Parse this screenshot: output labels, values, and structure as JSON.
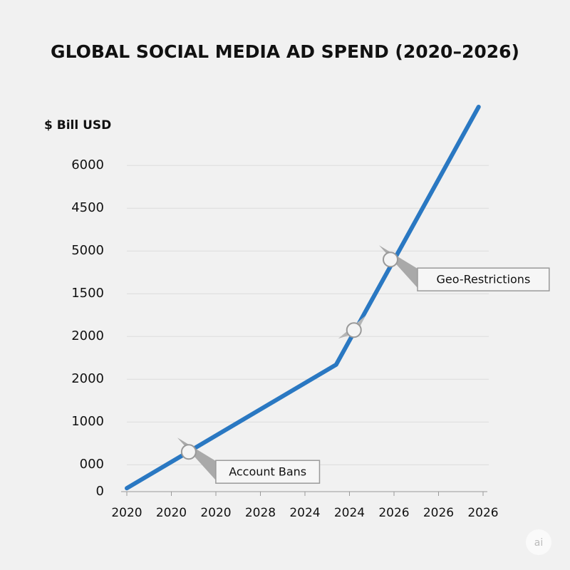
{
  "chart_data": {
    "type": "line",
    "title": "GLOBAL SOCIAL MEDIA AD SPEND (2020–2026)",
    "y_label": "$ Bill USD",
    "x": [
      0,
      4.7,
      7.9
    ],
    "values": [
      0.08,
      2.97,
      9
    ],
    "color": "#2a78c2",
    "xlim": [
      0,
      8
    ],
    "ylim": [
      0,
      9
    ],
    "xticks": [
      {
        "value": 0,
        "label": "2020"
      },
      {
        "value": 1,
        "label": "2020"
      },
      {
        "value": 2,
        "label": "2020"
      },
      {
        "value": 3,
        "label": "2028"
      },
      {
        "value": 4,
        "label": "2024"
      },
      {
        "value": 5,
        "label": "2024"
      },
      {
        "value": 6,
        "label": "2026"
      },
      {
        "value": 7,
        "label": "2026"
      },
      {
        "value": 8,
        "label": "2026"
      }
    ],
    "yticks": [
      0,
      {
        "value": 0.63,
        "label": "000"
      },
      {
        "value": 1.63,
        "label": "1000"
      },
      {
        "value": 2.63,
        "label": "2000"
      },
      {
        "value": 3.63,
        "label": "2000"
      },
      {
        "value": 4.63,
        "label": "1500"
      },
      {
        "value": 5.63,
        "label": "5000"
      },
      {
        "value": 6.63,
        "label": "4500"
      },
      {
        "value": 7.63,
        "label": "6000"
      }
    ],
    "grid": true,
    "annotations": [
      {
        "text": "Account Bans",
        "x": 1.39,
        "y": 0.93
      },
      {
        "text": "Geo-Restrictions",
        "x": 5.92,
        "y": 5.43
      },
      {
        "text": "",
        "x": 5.1,
        "y": 3.78
      }
    ],
    "watermark": "ai"
  }
}
